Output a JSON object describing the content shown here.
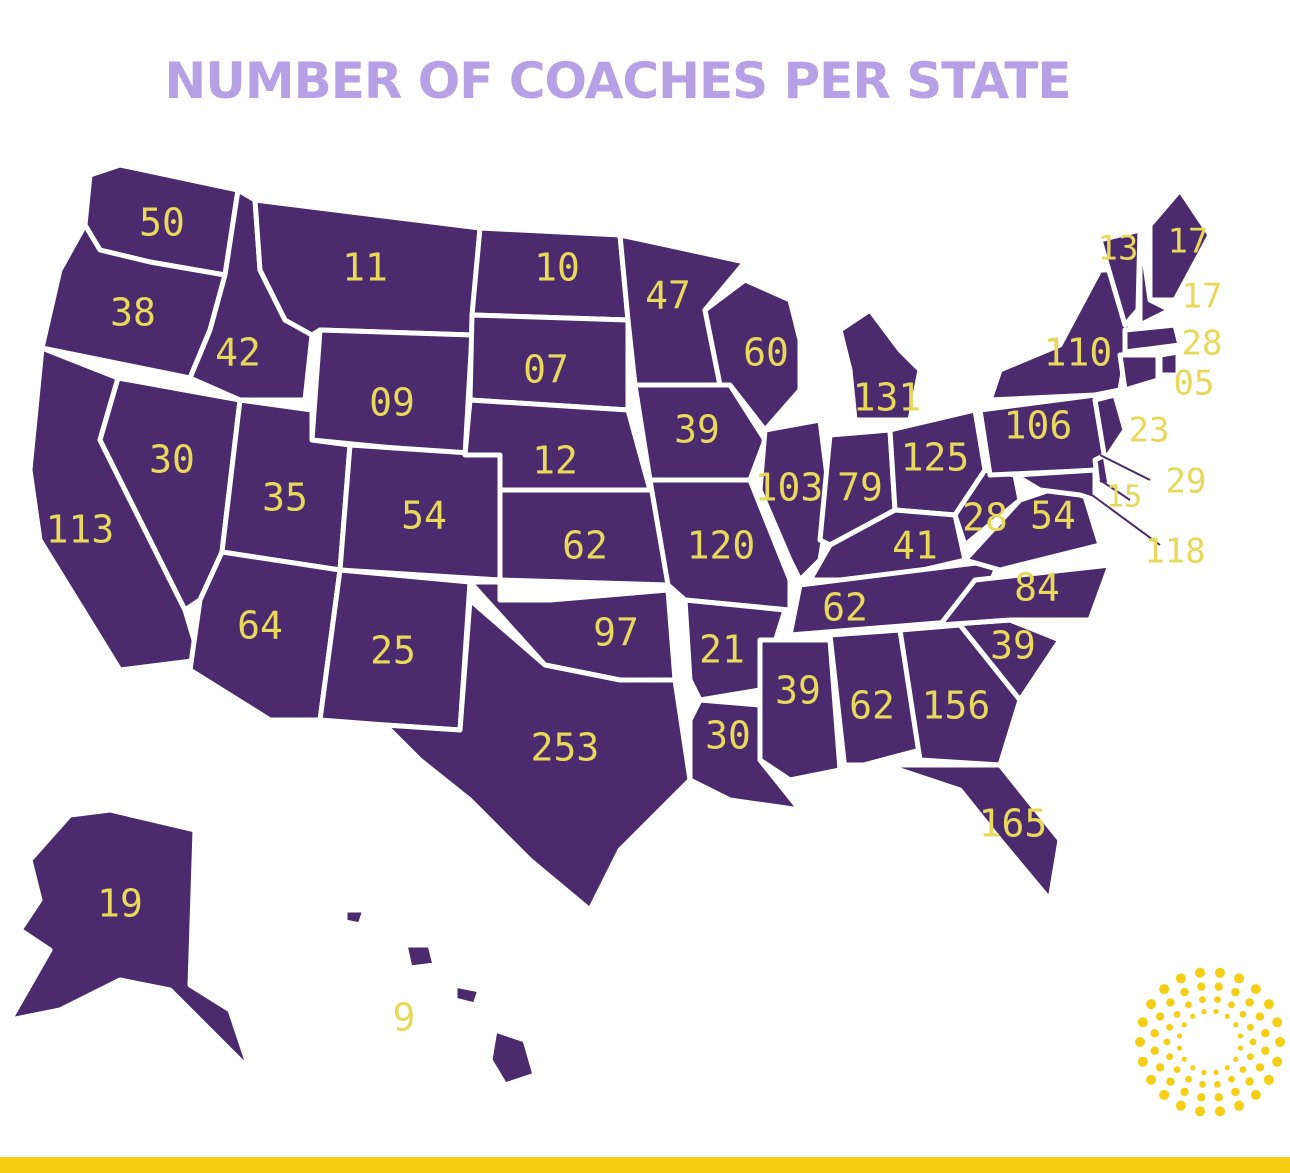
{
  "title": "NUMBER OF COACHES PER STATE",
  "colors": {
    "state_fill": "#4b2a6d",
    "state_border": "#ffffff",
    "label_text": "#e8d95a",
    "title_text": "#b6a0e6",
    "accent_bar": "#f6cf15",
    "logo": "#f6cf15"
  },
  "logo_icon": "sunburst-dots-icon",
  "states": {
    "WA": "50",
    "OR": "38",
    "CA": "113",
    "ID": "42",
    "NV": "30",
    "MT": "11",
    "WY": "09",
    "UT": "35",
    "AZ": "64",
    "CO": "54",
    "NM": "25",
    "ND": "10",
    "SD": "07",
    "NE": "12",
    "KS": "62",
    "OK": "97",
    "TX": "253",
    "MN": "47",
    "IA": "39",
    "MO": "120",
    "AR": "21",
    "LA": "30",
    "WI": "60",
    "IL": "103",
    "MI": "131",
    "IN": "79",
    "OH": "125",
    "KY": "41",
    "TN": "62",
    "MS": "39",
    "AL": "62",
    "GA": "156",
    "FL": "165",
    "SC": "39",
    "NC": "84",
    "VA": "54",
    "WV": "28",
    "PA": "106",
    "NY": "110",
    "VT": "13",
    "ME": "17",
    "NH": "17",
    "MA": "28",
    "RI": "05",
    "CT": "23",
    "NJ": "29",
    "DE": "15",
    "MD": "118",
    "AK": "19",
    "HI": "9"
  }
}
